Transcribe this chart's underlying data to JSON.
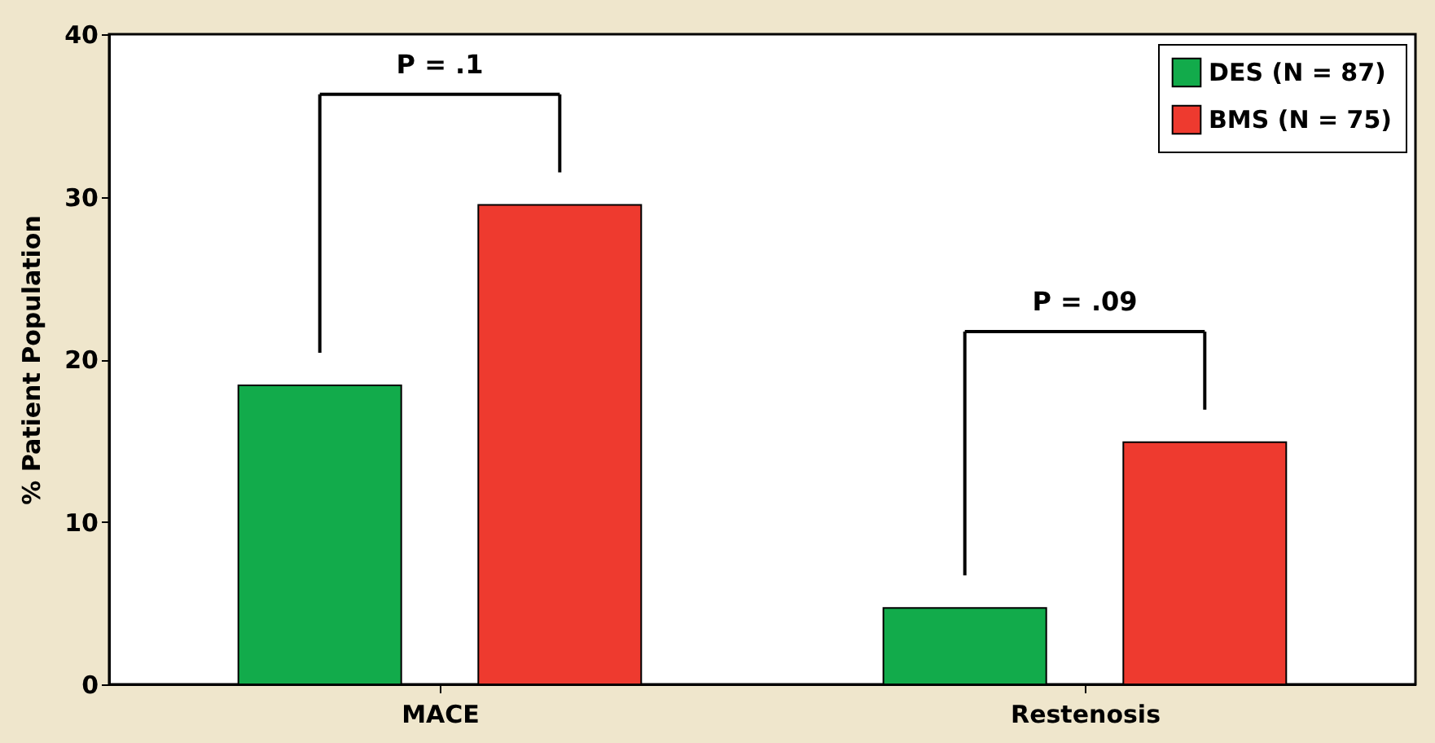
{
  "chart_data": {
    "type": "bar",
    "ylabel": "% Patient Population",
    "categories": [
      "MACE",
      "Restenosis"
    ],
    "series": [
      {
        "name": "DES (N = 87)",
        "color": "#12ab4b",
        "values": [
          18.4,
          4.7
        ]
      },
      {
        "name": "BMS (N = 75)",
        "color": "#ee3a2f",
        "values": [
          29.5,
          14.9
        ]
      }
    ],
    "ylim": [
      0,
      40
    ],
    "yticks": [
      0,
      10,
      20,
      30,
      40
    ],
    "grid": false,
    "legend": "top right",
    "annotations": [
      "P = .1",
      "P = .09"
    ]
  }
}
